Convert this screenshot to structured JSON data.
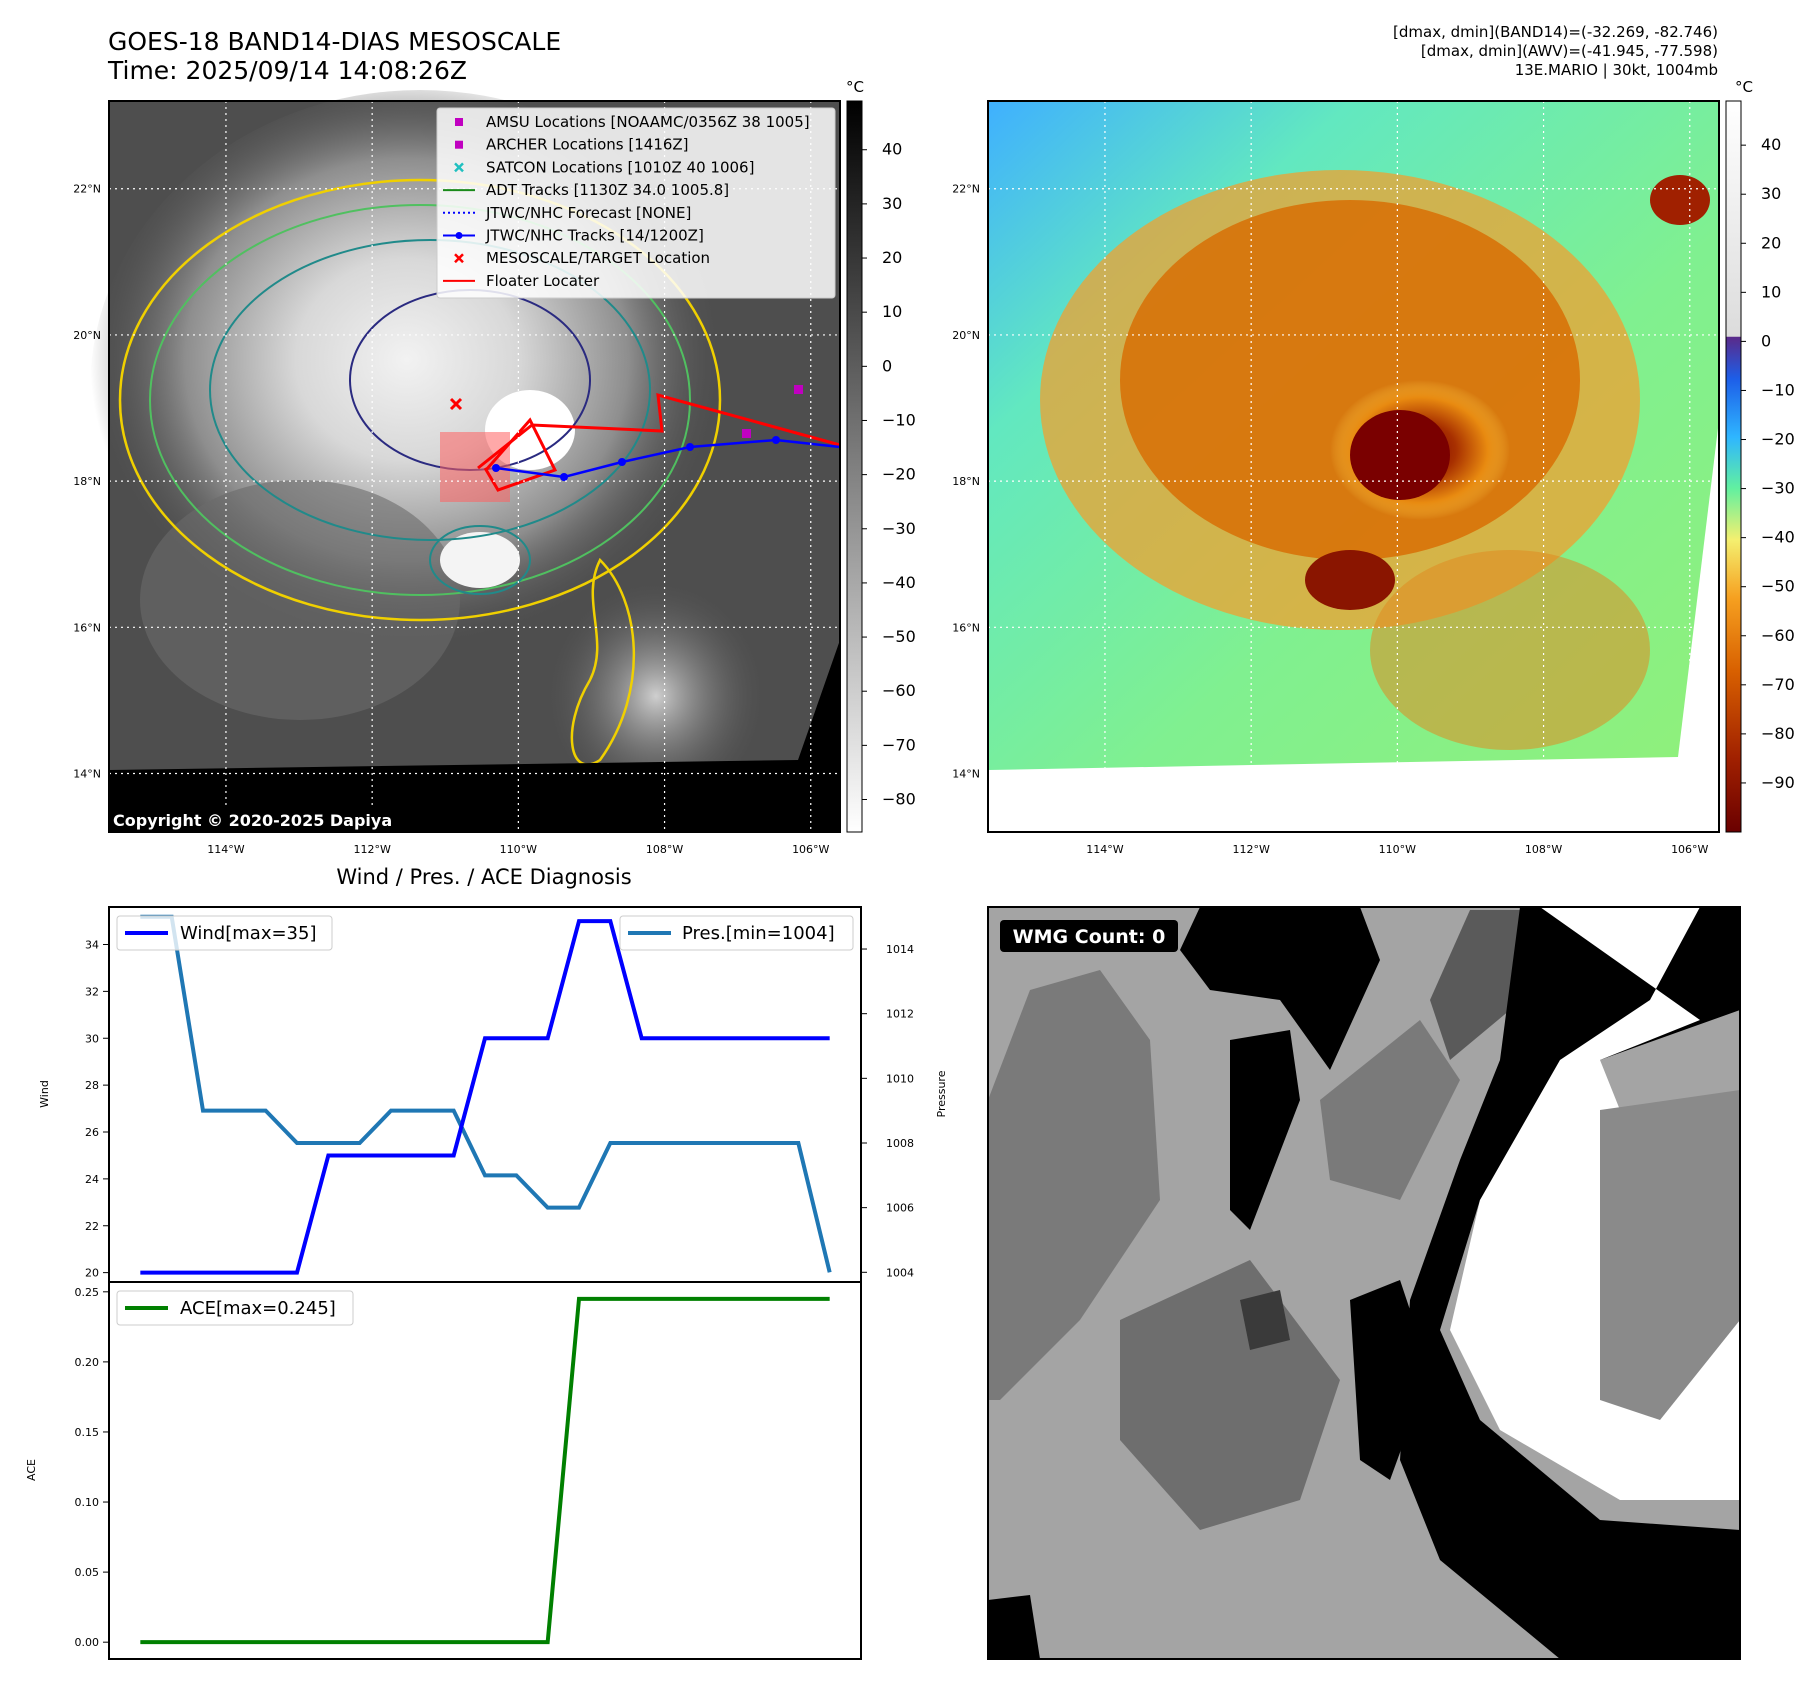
{
  "header": {
    "title_line1": "GOES-18 BAND14-DIAS MESOSCALE",
    "title_line2": "Time: 2025/09/14 14:08:26Z",
    "stats_line1": "[dmax, dmin](BAND14)=(-32.269, -82.746)",
    "stats_line2": "[dmax, dmin](AWV)=(-41.945, -77.598)",
    "stats_line3": "13E.MARIO | 30kt, 1004mb"
  },
  "map_axes": {
    "lat_labels": [
      "22°N",
      "20°N",
      "18°N",
      "16°N",
      "14°N"
    ],
    "lon_labels": [
      "114°W",
      "112°W",
      "110°W",
      "108°W",
      "106°W"
    ],
    "lat_values": [
      22,
      20,
      18,
      16,
      14
    ],
    "lon_values": [
      -114,
      -112,
      -110,
      -108,
      -106
    ],
    "lat_range": [
      13.2,
      23.2
    ],
    "lon_range": [
      -115.6,
      -105.6
    ]
  },
  "ir_panel": {
    "colorbar_unit": "°C",
    "colorbar_ticks": [
      "40",
      "30",
      "20",
      "10",
      "0",
      "−10",
      "−20",
      "−30",
      "−40",
      "−50",
      "−60",
      "−70",
      "−80"
    ],
    "colorbar_range": [
      49,
      -86
    ],
    "copyright": "Copyright © 2020-2025 Dapiya",
    "legend": [
      {
        "label": "AMSU Locations [NOAAMC/0356Z 38 1005]",
        "marker": "square",
        "color": "#c000c0"
      },
      {
        "label": "ARCHER Locations [1416Z]",
        "marker": "square",
        "color": "#c000c0"
      },
      {
        "label": "SATCON Locations [1010Z 40 1006]",
        "marker": "x",
        "color": "#20c0c0"
      },
      {
        "label": "ADT Tracks [1130Z 34.0 1005.8]",
        "marker": "line",
        "color": "#1a8a1a"
      },
      {
        "label": "JTWC/NHC Forecast [NONE]",
        "marker": "dotted",
        "color": "#0000ff"
      },
      {
        "label": "JTWC/NHC Tracks [14/1200Z]",
        "marker": "line-dot",
        "color": "#0000ff"
      },
      {
        "label": "MESOSCALE/TARGET Location",
        "marker": "x",
        "color": "#ff0000"
      },
      {
        "label": "Floater Locater",
        "marker": "line",
        "color": "#ff0000"
      }
    ]
  },
  "awv_panel": {
    "colorbar_unit": "°C",
    "colorbar_ticks": [
      "40",
      "30",
      "20",
      "10",
      "0",
      "−10",
      "−20",
      "−30",
      "−40",
      "−50",
      "−60",
      "−70",
      "−80",
      "−90"
    ],
    "colorbar_range": [
      49,
      -100
    ]
  },
  "wmg_panel": {
    "badge": "WMG Count: 0"
  },
  "chart_data": [
    {
      "type": "line",
      "title": "Wind / Pres. / ACE Diagnosis",
      "x": [
        0,
        1,
        2,
        3,
        4,
        5,
        6,
        7,
        8,
        9,
        10,
        11,
        12,
        13,
        14,
        15,
        16,
        17,
        18,
        19,
        20,
        21,
        22
      ],
      "series": [
        {
          "name": "Wind[max=35]",
          "axis": "left",
          "color": "#0000ff",
          "values": [
            20,
            20,
            20,
            20,
            20,
            20,
            25,
            25,
            25,
            25,
            25,
            30,
            30,
            30,
            35,
            35,
            30,
            30,
            30,
            30,
            30,
            30,
            30
          ]
        },
        {
          "name": "Pres.[min=1004]",
          "axis": "right",
          "color": "#1f77b4",
          "values": [
            1015,
            1015,
            1009,
            1009,
            1009,
            1008,
            1008,
            1008,
            1009,
            1009,
            1009,
            1007,
            1007,
            1006,
            1006,
            1008,
            1008,
            1008,
            1008,
            1008,
            1008,
            1008,
            1004
          ]
        }
      ],
      "ylabel": "Wind",
      "ylabel_right": "Pressure",
      "ylim": [
        19.6,
        35.6
      ],
      "ylim_right": [
        1003.7,
        1015.3
      ],
      "yticks": [
        20,
        22,
        24,
        26,
        28,
        30,
        32,
        34
      ],
      "yticks_right": [
        1004,
        1006,
        1008,
        1010,
        1012,
        1014
      ],
      "legend_left": "upper-left",
      "legend_right": "upper-right"
    },
    {
      "type": "line",
      "x": [
        0,
        1,
        2,
        3,
        4,
        5,
        6,
        7,
        8,
        9,
        10,
        11,
        12,
        13,
        14,
        15,
        16,
        17,
        18,
        19,
        20,
        21,
        22
      ],
      "series": [
        {
          "name": "ACE[max=0.245]",
          "color": "#008000",
          "values": [
            0,
            0,
            0,
            0,
            0,
            0,
            0,
            0,
            0,
            0,
            0,
            0,
            0,
            0,
            0.245,
            0.245,
            0.245,
            0.245,
            0.245,
            0.245,
            0.245,
            0.245,
            0.245
          ]
        }
      ],
      "ylabel": "ACE",
      "ylim": [
        -0.012,
        0.257
      ],
      "yticks": [
        "0.00",
        "0.05",
        "0.10",
        "0.15",
        "0.20",
        "0.25"
      ],
      "ytick_values": [
        0,
        0.05,
        0.1,
        0.15,
        0.2,
        0.25
      ],
      "legend": "upper-left"
    }
  ]
}
